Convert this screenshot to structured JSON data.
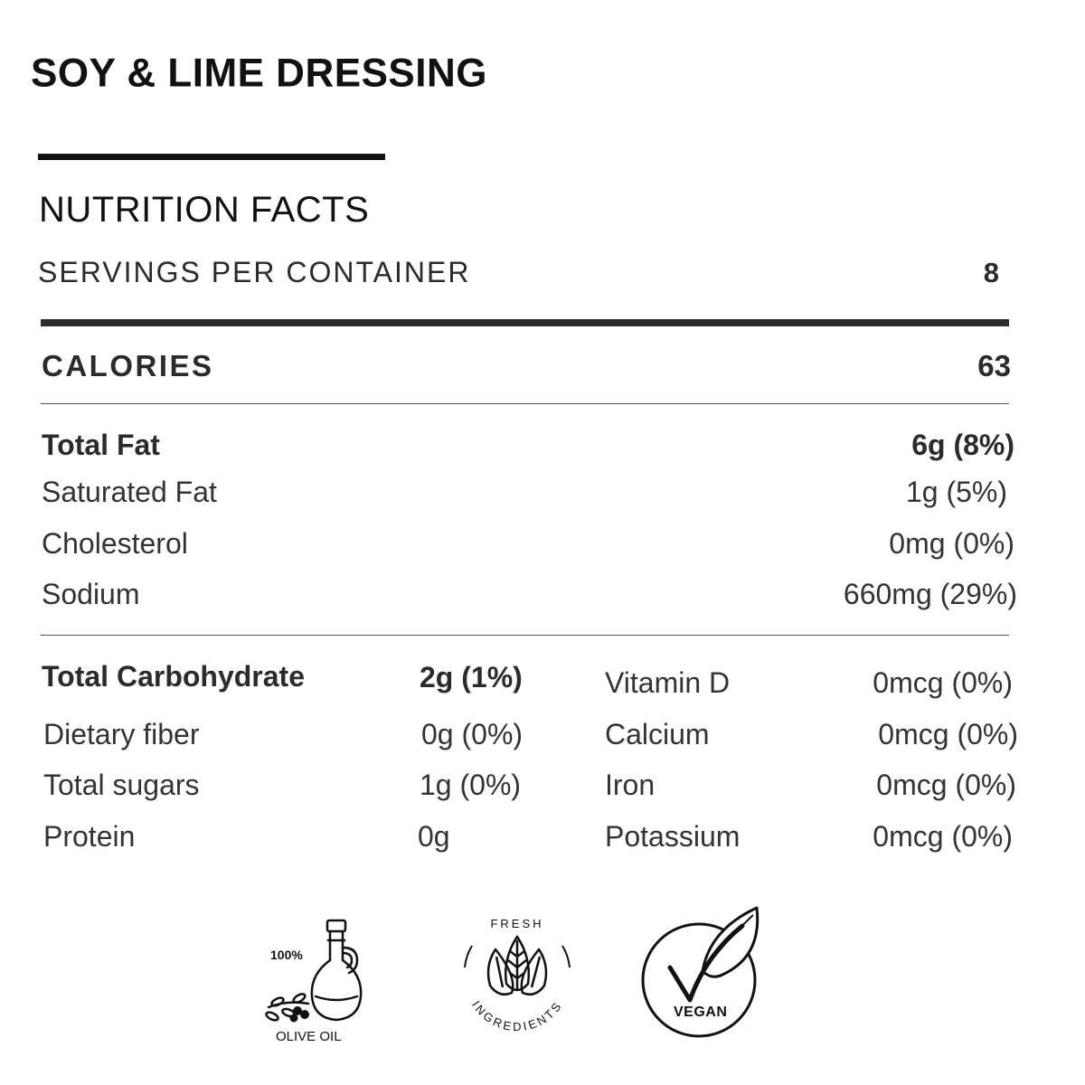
{
  "product": {
    "title": "SOY & LIME DRESSING"
  },
  "facts": {
    "heading": "NUTRITION FACTS",
    "servings_label": "SERVINGS PER CONTAINER",
    "servings_value": "8",
    "calories_label": "CALORIES",
    "calories_value": "63",
    "fats": [
      {
        "label": "Total Fat",
        "value": "6g (8%)",
        "bold": true
      },
      {
        "label": "Saturated Fat",
        "value": "1g (5%)",
        "bold": false
      },
      {
        "label": "Cholesterol",
        "value": "0mg (0%)",
        "bold": false
      },
      {
        "label": "Sodium",
        "value": "660mg (29%)",
        "bold": false
      }
    ],
    "carbs": [
      {
        "label": "Total Carbohydrate",
        "value": "2g (1%)",
        "bold": true
      },
      {
        "label": "Dietary fiber",
        "value": "0g (0%)",
        "bold": false
      },
      {
        "label": "Total sugars",
        "value": "1g (0%)",
        "bold": false
      },
      {
        "label": "Protein",
        "value": "0g",
        "bold": false
      }
    ],
    "minerals": [
      {
        "label": "Vitamin D",
        "value": "0mcg (0%)"
      },
      {
        "label": "Calcium",
        "value": "0mcg (0%)"
      },
      {
        "label": "Iron",
        "value": "0mcg (0%)"
      },
      {
        "label": "Potassium",
        "value": "0mcg (0%)"
      }
    ]
  },
  "badges": {
    "olive_oil": {
      "percent": "100%",
      "caption": "OLIVE OIL",
      "icon": "olive-oil-bottle-icon"
    },
    "fresh": {
      "top_text": "FRESH",
      "bottom_text": "INGREDIENTS",
      "icon": "leaves-icon"
    },
    "vegan": {
      "caption": "VEGAN",
      "icon": "leaf-check-icon"
    }
  }
}
